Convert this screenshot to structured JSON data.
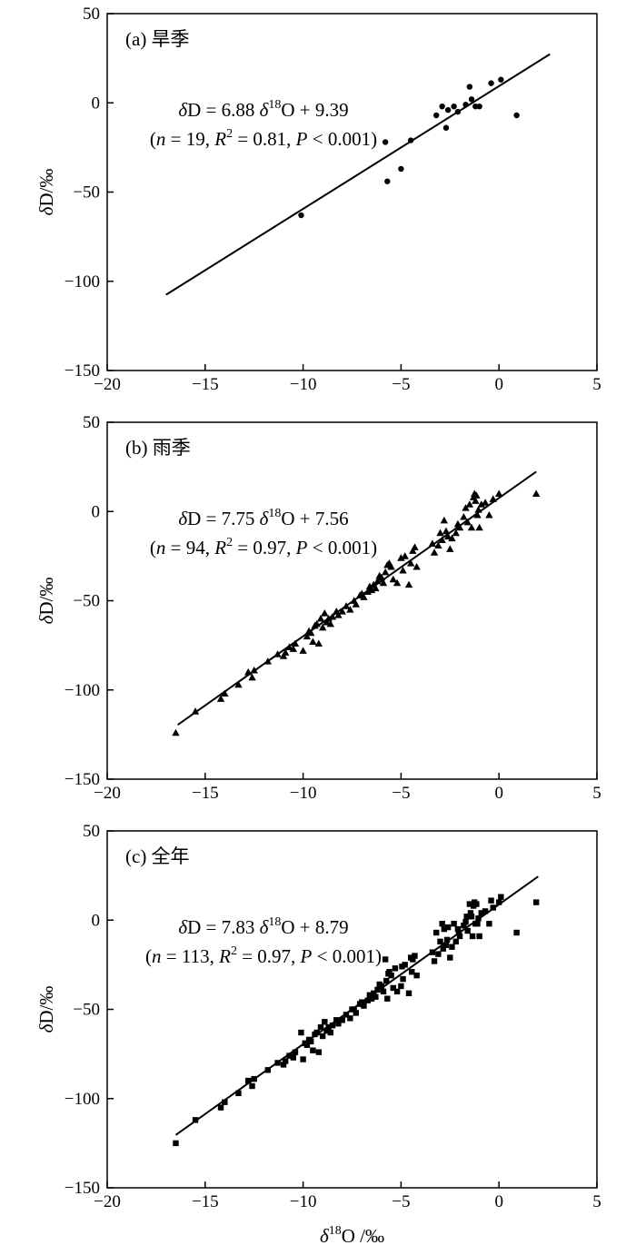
{
  "chart_data": [
    {
      "type": "scatter",
      "panel_label": "(a) 旱季",
      "marker": "circle",
      "xlim": [
        -20,
        5
      ],
      "ylim": [
        -150,
        50
      ],
      "x_ticks": [
        -20,
        -15,
        -10,
        -5,
        0,
        5
      ],
      "y_ticks": [
        -150,
        -100,
        -50,
        0,
        50
      ],
      "ylabel": "δD/‰",
      "xlabel": "",
      "fit": {
        "slope": 6.88,
        "intercept": 9.39,
        "x_range": [
          -17.0,
          2.6
        ]
      },
      "equation": {
        "line1": {
          "lhs": "δ",
          "mid": "D = 6.88 ",
          "delta": "δ",
          "sup": "18",
          "rhs": "O + 9.39"
        },
        "line2": {
          "open": "(",
          "n_sym": "n",
          "n_val": " = 19, ",
          "r_sym": "R",
          "r_sup": "2",
          "r_val": " = 0.81, ",
          "p_sym": "P",
          "p_val": " < 0.001)"
        }
      },
      "points": [
        [
          -10.1,
          -63
        ],
        [
          -5.8,
          -22
        ],
        [
          -5.7,
          -44
        ],
        [
          -5.0,
          -37
        ],
        [
          -4.5,
          -21
        ],
        [
          -3.2,
          -7
        ],
        [
          -2.9,
          -2
        ],
        [
          -2.7,
          -14
        ],
        [
          -2.6,
          -4
        ],
        [
          -2.3,
          -2
        ],
        [
          -2.1,
          -5
        ],
        [
          -1.7,
          -1
        ],
        [
          -1.5,
          9
        ],
        [
          -1.4,
          2
        ],
        [
          -1.2,
          -2
        ],
        [
          -1.0,
          -2
        ],
        [
          -0.4,
          11
        ],
        [
          0.1,
          13
        ],
        [
          0.9,
          -7
        ]
      ]
    },
    {
      "type": "scatter",
      "panel_label": "(b) 雨季",
      "marker": "triangle",
      "xlim": [
        -20,
        5
      ],
      "ylim": [
        -150,
        50
      ],
      "x_ticks": [
        -20,
        -15,
        -10,
        -5,
        0,
        5
      ],
      "y_ticks": [
        -150,
        -100,
        -50,
        0,
        50
      ],
      "ylabel": "δD/‰",
      "xlabel": "",
      "fit": {
        "slope": 7.75,
        "intercept": 7.56,
        "x_range": [
          -16.4,
          1.9
        ]
      },
      "equation": {
        "line1": {
          "lhs": "δ",
          "mid": "D = 7.75 ",
          "delta": "δ",
          "sup": "18",
          "rhs": "O + 7.56"
        },
        "line2": {
          "open": "(",
          "n_sym": "n",
          "n_val": " = 94, ",
          "r_sym": "R",
          "r_sup": "2",
          "r_val": " = 0.97, ",
          "p_sym": "P",
          "p_val": " < 0.001)"
        }
      },
      "points": [
        [
          -16.5,
          -124
        ],
        [
          -15.5,
          -112
        ],
        [
          -14.2,
          -105
        ],
        [
          -14.0,
          -102
        ],
        [
          -13.3,
          -97
        ],
        [
          -12.6,
          -93
        ],
        [
          -12.5,
          -89
        ],
        [
          -11.8,
          -84
        ],
        [
          -11.3,
          -80
        ],
        [
          -10.9,
          -79
        ],
        [
          -10.7,
          -76
        ],
        [
          -10.5,
          -77
        ],
        [
          -10.4,
          -74
        ],
        [
          -10.0,
          -78
        ],
        [
          -9.8,
          -70
        ],
        [
          -9.7,
          -67
        ],
        [
          -9.6,
          -68
        ],
        [
          -9.5,
          -73
        ],
        [
          -9.4,
          -64
        ],
        [
          -9.3,
          -63
        ],
        [
          -9.2,
          -74
        ],
        [
          -9.1,
          -60
        ],
        [
          -9.0,
          -65
        ],
        [
          -8.9,
          -57
        ],
        [
          -8.8,
          -62
        ],
        [
          -8.6,
          -63
        ],
        [
          -8.5,
          -59
        ],
        [
          -8.3,
          -56
        ],
        [
          -8.2,
          -58
        ],
        [
          -8.0,
          -56
        ],
        [
          -7.8,
          -53
        ],
        [
          -7.6,
          -55
        ],
        [
          -7.4,
          -50
        ],
        [
          -7.3,
          -52
        ],
        [
          -7.1,
          -47
        ],
        [
          -7.0,
          -46
        ],
        [
          -6.9,
          -48
        ],
        [
          -6.7,
          -45
        ],
        [
          -6.5,
          -44
        ],
        [
          -6.4,
          -41
        ],
        [
          -6.3,
          -43
        ],
        [
          -6.2,
          -39
        ],
        [
          -6.1,
          -36
        ],
        [
          -6.0,
          -37
        ],
        [
          -5.9,
          -40
        ],
        [
          -5.8,
          -34
        ],
        [
          -5.7,
          -30
        ],
        [
          -5.6,
          -29
        ],
        [
          -5.5,
          -31
        ],
        [
          -5.4,
          -38
        ],
        [
          -5.2,
          -40
        ],
        [
          -5.0,
          -26
        ],
        [
          -4.9,
          -33
        ],
        [
          -4.8,
          -25
        ],
        [
          -4.6,
          -41
        ],
        [
          -4.5,
          -29
        ],
        [
          -4.4,
          -22
        ],
        [
          -4.3,
          -20
        ],
        [
          -4.2,
          -31
        ],
        [
          -3.3,
          -23
        ],
        [
          -3.1,
          -19
        ],
        [
          -3.0,
          -12
        ],
        [
          -2.9,
          -16
        ],
        [
          -2.8,
          -5
        ],
        [
          -2.7,
          -11
        ],
        [
          -2.6,
          -14
        ],
        [
          -2.5,
          -21
        ],
        [
          -2.4,
          -15
        ],
        [
          -2.2,
          -12
        ],
        [
          -2.1,
          -7
        ],
        [
          -2.0,
          -9
        ],
        [
          -1.8,
          -3
        ],
        [
          -1.7,
          2
        ],
        [
          -1.6,
          -6
        ],
        [
          -1.5,
          4
        ],
        [
          -1.4,
          -9
        ],
        [
          -1.3,
          8
        ],
        [
          -1.25,
          10
        ],
        [
          -1.2,
          6
        ],
        [
          -1.15,
          9
        ],
        [
          -1.1,
          -2
        ],
        [
          -1.05,
          1
        ],
        [
          -1.0,
          -9
        ],
        [
          -0.9,
          4
        ],
        [
          -0.7,
          5
        ],
        [
          -0.5,
          -2
        ],
        [
          -0.3,
          7
        ],
        [
          0.0,
          10
        ],
        [
          1.9,
          10
        ],
        [
          -12.8,
          -90
        ],
        [
          -11.0,
          -81
        ],
        [
          -8.7,
          -60
        ],
        [
          -6.6,
          -42
        ],
        [
          -3.4,
          -18
        ]
      ]
    },
    {
      "type": "scatter",
      "panel_label": "(c) 全年",
      "marker": "square",
      "xlim": [
        -20,
        5
      ],
      "ylim": [
        -150,
        50
      ],
      "x_ticks": [
        -20,
        -15,
        -10,
        -5,
        0,
        5
      ],
      "y_ticks": [
        -150,
        -100,
        -50,
        0,
        50
      ],
      "ylabel": "δD/‰",
      "xlabel": "δ18O /‰",
      "fit": {
        "slope": 7.83,
        "intercept": 8.79,
        "x_range": [
          -16.5,
          2.0
        ]
      },
      "equation": {
        "line1": {
          "lhs": "δ",
          "mid": "D = 7.83 ",
          "delta": "δ",
          "sup": "18",
          "rhs": "O + 8.79"
        },
        "line2": {
          "open": "(",
          "n_sym": "n",
          "n_val": " = 113, ",
          "r_sym": "R",
          "r_sup": "2",
          "r_val": " = 0.97, ",
          "p_sym": "P",
          "p_val": " < 0.001)"
        }
      },
      "points": [
        [
          -16.5,
          -125
        ],
        [
          -15.5,
          -112
        ],
        [
          -14.2,
          -105
        ],
        [
          -14.0,
          -102
        ],
        [
          -13.3,
          -97
        ],
        [
          -12.6,
          -93
        ],
        [
          -12.5,
          -89
        ],
        [
          -11.8,
          -84
        ],
        [
          -11.3,
          -80
        ],
        [
          -10.9,
          -79
        ],
        [
          -10.7,
          -76
        ],
        [
          -10.5,
          -77
        ],
        [
          -10.4,
          -74
        ],
        [
          -10.1,
          -63
        ],
        [
          -10.0,
          -78
        ],
        [
          -9.8,
          -70
        ],
        [
          -9.7,
          -67
        ],
        [
          -9.6,
          -68
        ],
        [
          -9.5,
          -73
        ],
        [
          -9.4,
          -64
        ],
        [
          -9.3,
          -63
        ],
        [
          -9.2,
          -74
        ],
        [
          -9.1,
          -60
        ],
        [
          -9.0,
          -65
        ],
        [
          -8.9,
          -57
        ],
        [
          -8.8,
          -62
        ],
        [
          -8.6,
          -63
        ],
        [
          -8.5,
          -59
        ],
        [
          -8.3,
          -56
        ],
        [
          -8.2,
          -58
        ],
        [
          -8.0,
          -56
        ],
        [
          -7.8,
          -53
        ],
        [
          -7.6,
          -55
        ],
        [
          -7.4,
          -50
        ],
        [
          -7.3,
          -52
        ],
        [
          -7.1,
          -47
        ],
        [
          -7.0,
          -46
        ],
        [
          -6.9,
          -48
        ],
        [
          -6.7,
          -45
        ],
        [
          -6.5,
          -44
        ],
        [
          -6.4,
          -41
        ],
        [
          -6.3,
          -43
        ],
        [
          -6.2,
          -39
        ],
        [
          -6.1,
          -36
        ],
        [
          -6.0,
          -37
        ],
        [
          -5.9,
          -40
        ],
        [
          -5.8,
          -22
        ],
        [
          -5.75,
          -34
        ],
        [
          -5.7,
          -44
        ],
        [
          -5.65,
          -30
        ],
        [
          -5.6,
          -29
        ],
        [
          -5.5,
          -31
        ],
        [
          -5.4,
          -38
        ],
        [
          -5.2,
          -40
        ],
        [
          -5.0,
          -37
        ],
        [
          -4.95,
          -26
        ],
        [
          -4.9,
          -33
        ],
        [
          -4.8,
          -25
        ],
        [
          -4.6,
          -41
        ],
        [
          -4.5,
          -21
        ],
        [
          -4.45,
          -29
        ],
        [
          -4.4,
          -22
        ],
        [
          -4.3,
          -20
        ],
        [
          -4.2,
          -31
        ],
        [
          -3.3,
          -23
        ],
        [
          -3.2,
          -7
        ],
        [
          -3.1,
          -19
        ],
        [
          -3.0,
          -12
        ],
        [
          -2.9,
          -2
        ],
        [
          -2.85,
          -16
        ],
        [
          -2.8,
          -5
        ],
        [
          -2.7,
          -14
        ],
        [
          -2.65,
          -11
        ],
        [
          -2.6,
          -4
        ],
        [
          -2.5,
          -21
        ],
        [
          -2.4,
          -15
        ],
        [
          -2.3,
          -2
        ],
        [
          -2.2,
          -12
        ],
        [
          -2.1,
          -5
        ],
        [
          -2.05,
          -7
        ],
        [
          -2.0,
          -9
        ],
        [
          -1.8,
          -3
        ],
        [
          -1.7,
          -1
        ],
        [
          -1.65,
          2
        ],
        [
          -1.6,
          -6
        ],
        [
          -1.5,
          9
        ],
        [
          -1.45,
          4
        ],
        [
          -1.4,
          2
        ],
        [
          -1.35,
          -9
        ],
        [
          -1.3,
          8
        ],
        [
          -1.25,
          10
        ],
        [
          -1.2,
          -2
        ],
        [
          -1.15,
          9
        ],
        [
          -1.1,
          -2
        ],
        [
          -1.05,
          1
        ],
        [
          -1.0,
          -9
        ],
        [
          -0.9,
          4
        ],
        [
          -0.7,
          5
        ],
        [
          -0.5,
          -2
        ],
        [
          -0.4,
          11
        ],
        [
          -0.3,
          7
        ],
        [
          0.0,
          10
        ],
        [
          0.1,
          13
        ],
        [
          0.9,
          -7
        ],
        [
          1.9,
          10
        ],
        [
          -12.8,
          -90
        ],
        [
          -11.0,
          -81
        ],
        [
          -8.7,
          -60
        ],
        [
          -6.6,
          -42
        ],
        [
          -3.4,
          -18
        ],
        [
          -9.9,
          -69
        ],
        [
          -7.5,
          -50
        ],
        [
          -5.3,
          -27
        ]
      ]
    }
  ]
}
